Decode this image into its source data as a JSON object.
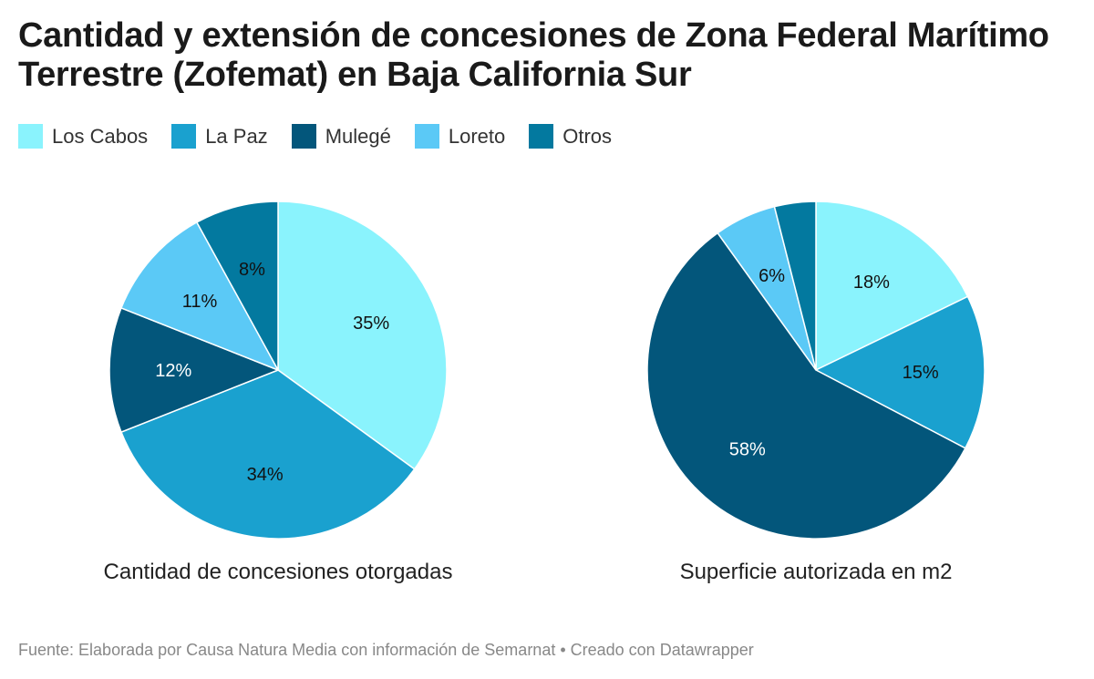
{
  "title": "Cantidad y extensión de concesiones de Zona Federal Marítimo Terrestre (Zofemat) en Baja California Sur",
  "source": "Fuente: Elaborada por Causa Natura Media con información de Semarnat • Creado con Datawrapper",
  "chart_data": {
    "type": "pie",
    "legend_position": "top-left",
    "categories": [
      "Los Cabos",
      "La Paz",
      "Mulegé",
      "Loreto",
      "Otros"
    ],
    "colors": [
      "#8af3fd",
      "#1aa1cf",
      "#03567b",
      "#5bc9f6",
      "#03799f"
    ],
    "charts": [
      {
        "title": "Cantidad de concesiones otorgadas",
        "values": [
          35,
          34,
          12,
          11,
          8
        ],
        "labels": [
          "35%",
          "34%",
          "12%",
          "11%",
          "8%"
        ]
      },
      {
        "title": "Superficie autorizada en m2",
        "values": [
          18,
          15,
          58,
          6,
          4
        ],
        "labels": [
          "18%",
          "15%",
          "58%",
          "6%",
          ""
        ]
      }
    ]
  }
}
